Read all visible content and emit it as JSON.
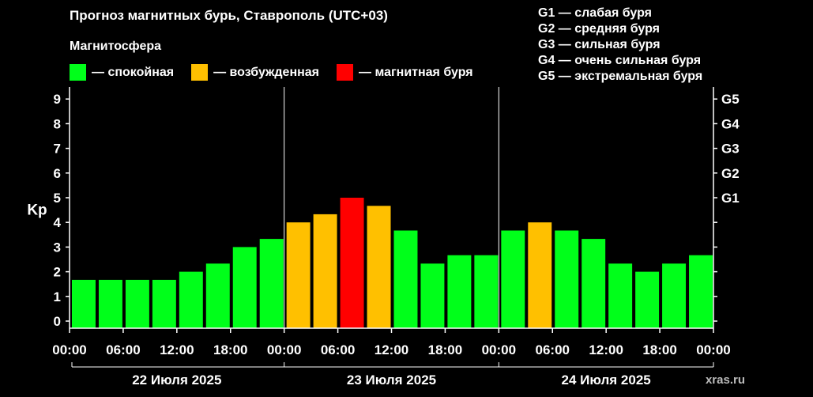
{
  "title": "Прогноз магнитных бурь, Ставрополь (UTC+03)",
  "legend": {
    "heading": "Магнитосфера",
    "items": [
      {
        "label": "— спокойная",
        "color": "#00ff1a"
      },
      {
        "label": "— возбужденная",
        "color": "#ffc000"
      },
      {
        "label": "— магнитная буря",
        "color": "#ff0000"
      }
    ]
  },
  "g_scale": [
    "G1 — слабая буря",
    "G2 — средняя буря",
    "G3 — сильная буря",
    "G4 — очень сильная буря",
    "G5 — экстремальная буря"
  ],
  "footer": "xras.ru",
  "chart_data": {
    "type": "bar",
    "ylabel": "Kp",
    "ylim": [
      0,
      9
    ],
    "yticks": [
      "0",
      "1",
      "2",
      "3",
      "4",
      "5",
      "6",
      "7",
      "8",
      "9"
    ],
    "right_ticks": [
      "G1",
      "G2",
      "G3",
      "G4",
      "G5"
    ],
    "xtick_labels": [
      "00:00",
      "06:00",
      "12:00",
      "18:00",
      "00:00",
      "06:00",
      "12:00",
      "18:00",
      "00:00",
      "06:00",
      "12:00",
      "18:00",
      "00:00"
    ],
    "days": [
      "22 Июля 2025",
      "23 Июля 2025",
      "24 Июля 2025"
    ],
    "values": [
      1.67,
      1.67,
      1.67,
      1.67,
      2.0,
      2.33,
      3.0,
      3.33,
      4.0,
      4.33,
      5.0,
      4.67,
      3.67,
      2.33,
      2.67,
      2.67,
      3.67,
      4.0,
      3.67,
      3.33,
      2.33,
      2.0,
      2.33,
      2.67
    ],
    "status": [
      "calm",
      "calm",
      "calm",
      "calm",
      "calm",
      "calm",
      "calm",
      "calm",
      "excited",
      "excited",
      "storm",
      "excited",
      "calm",
      "calm",
      "calm",
      "calm",
      "calm",
      "excited",
      "calm",
      "calm",
      "calm",
      "calm",
      "calm",
      "calm"
    ],
    "colors": {
      "calm": "#00ff1a",
      "excited": "#ffc000",
      "storm": "#ff0000"
    }
  }
}
